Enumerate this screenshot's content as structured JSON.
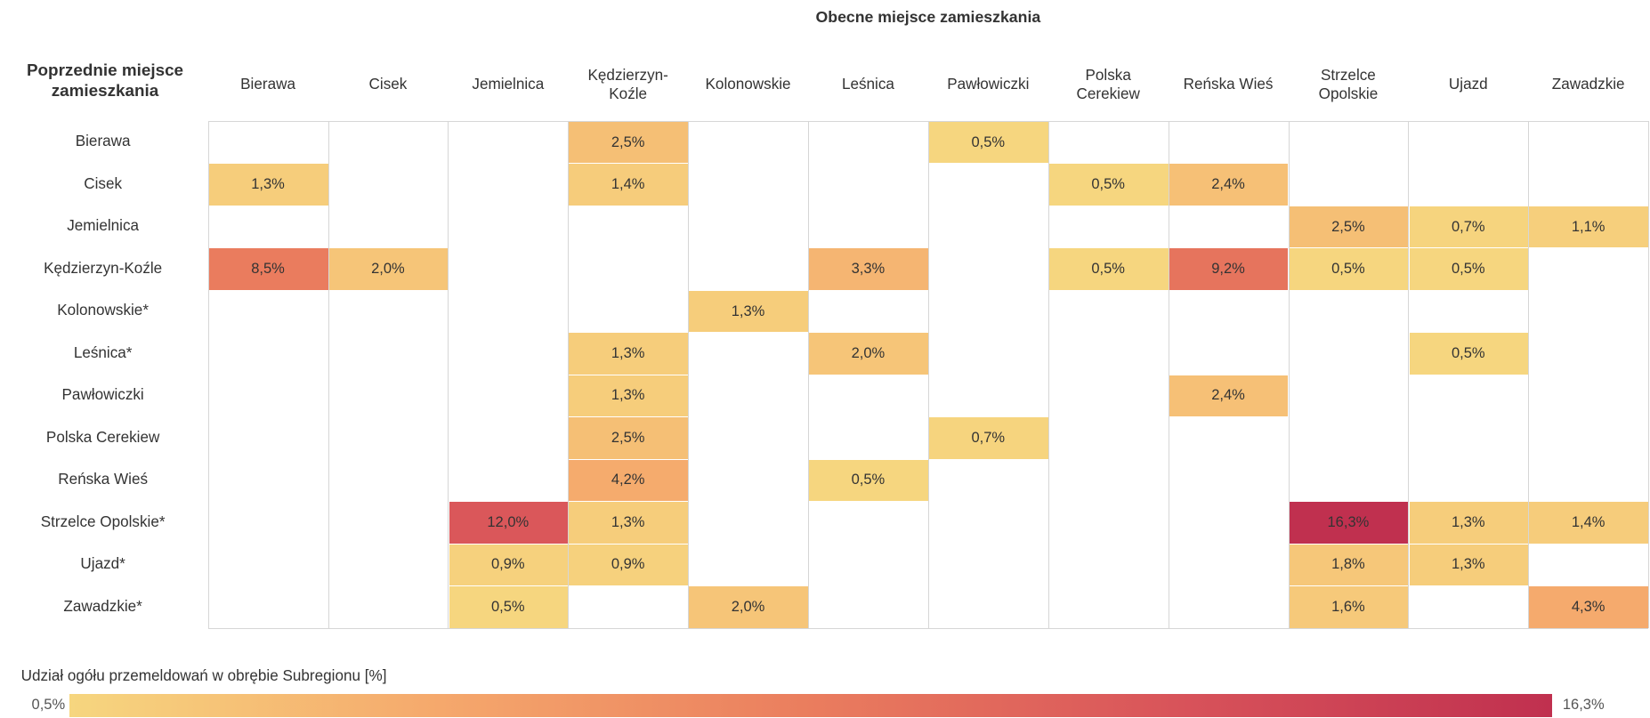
{
  "chart_data": {
    "type": "heatmap",
    "title": "Obecne miejsce zamieszkania",
    "row_axis_label": "Poprzednie miejsce\nzamieszkania",
    "columns": [
      "Bierawa",
      "Cisek",
      "Jemielnica",
      "Kędzierzyn-\nKoźle",
      "Kolonowskie",
      "Leśnica",
      "Pawłowiczki",
      "Polska\nCerekiew",
      "Reńska Wieś",
      "Strzelce\nOpolskie",
      "Ujazd",
      "Zawadzkie"
    ],
    "rows": [
      "Bierawa",
      "Cisek",
      "Jemielnica",
      "Kędzierzyn-Koźle",
      "Kolonowskie*",
      "Leśnica*",
      "Pawłowiczki",
      "Polska Cerekiew",
      "Reńska Wieś",
      "Strzelce Opolskie*",
      "Ujazd*",
      "Zawadzkie*"
    ],
    "values": [
      [
        null,
        null,
        null,
        2.5,
        null,
        null,
        0.5,
        null,
        null,
        null,
        null,
        null
      ],
      [
        1.3,
        null,
        null,
        1.4,
        null,
        null,
        null,
        0.5,
        2.4,
        null,
        null,
        null
      ],
      [
        null,
        null,
        null,
        null,
        null,
        null,
        null,
        null,
        null,
        2.5,
        0.7,
        1.1
      ],
      [
        8.5,
        2.0,
        null,
        null,
        null,
        3.3,
        null,
        0.5,
        9.2,
        0.5,
        0.5,
        null
      ],
      [
        null,
        null,
        null,
        null,
        1.3,
        null,
        null,
        null,
        null,
        null,
        null,
        null
      ],
      [
        null,
        null,
        null,
        1.3,
        null,
        2.0,
        null,
        null,
        null,
        null,
        0.5,
        null
      ],
      [
        null,
        null,
        null,
        1.3,
        null,
        null,
        null,
        null,
        2.4,
        null,
        null,
        null
      ],
      [
        null,
        null,
        null,
        2.5,
        null,
        null,
        0.7,
        null,
        null,
        null,
        null,
        null
      ],
      [
        null,
        null,
        null,
        4.2,
        null,
        0.5,
        null,
        null,
        null,
        null,
        null,
        null
      ],
      [
        null,
        null,
        12.0,
        1.3,
        null,
        null,
        null,
        null,
        null,
        16.3,
        1.3,
        1.4
      ],
      [
        null,
        null,
        0.9,
        0.9,
        null,
        null,
        null,
        null,
        null,
        1.8,
        1.3,
        null
      ],
      [
        null,
        null,
        0.5,
        null,
        2.0,
        null,
        null,
        null,
        null,
        1.6,
        null,
        4.3
      ]
    ],
    "value_labels": [
      [
        null,
        null,
        null,
        "2,5%",
        null,
        null,
        "0,5%",
        null,
        null,
        null,
        null,
        null
      ],
      [
        "1,3%",
        null,
        null,
        "1,4%",
        null,
        null,
        null,
        "0,5%",
        "2,4%",
        null,
        null,
        null
      ],
      [
        null,
        null,
        null,
        null,
        null,
        null,
        null,
        null,
        null,
        "2,5%",
        "0,7%",
        "1,1%"
      ],
      [
        "8,5%",
        "2,0%",
        null,
        null,
        null,
        "3,3%",
        null,
        "0,5%",
        "9,2%",
        "0,5%",
        "0,5%",
        null
      ],
      [
        null,
        null,
        null,
        null,
        "1,3%",
        null,
        null,
        null,
        null,
        null,
        null,
        null
      ],
      [
        null,
        null,
        null,
        "1,3%",
        null,
        "2,0%",
        null,
        null,
        null,
        null,
        "0,5%",
        null
      ],
      [
        null,
        null,
        null,
        "1,3%",
        null,
        null,
        null,
        null,
        "2,4%",
        null,
        null,
        null
      ],
      [
        null,
        null,
        null,
        "2,5%",
        null,
        null,
        "0,7%",
        null,
        null,
        null,
        null,
        null
      ],
      [
        null,
        null,
        null,
        "4,2%",
        null,
        "0,5%",
        null,
        null,
        null,
        null,
        null,
        null
      ],
      [
        null,
        null,
        "12,0%",
        "1,3%",
        null,
        null,
        null,
        null,
        null,
        "16,3%",
        "1,3%",
        "1,4%"
      ],
      [
        null,
        null,
        "0,9%",
        "0,9%",
        null,
        null,
        null,
        null,
        null,
        "1,8%",
        "1,3%",
        null
      ],
      [
        null,
        null,
        "0,5%",
        null,
        "2,0%",
        null,
        null,
        null,
        null,
        "1,6%",
        null,
        "4,3%"
      ]
    ],
    "colorbar_title": "Udział ogółu przemeldowań w obrębie Subregionu [%]",
    "clim": [
      0.5,
      16.3
    ],
    "cticks": [
      {
        "value": 0.5,
        "label": "0,5%"
      },
      {
        "value": 16.3,
        "label": "16,3%"
      }
    ],
    "colors": [
      "#f6d67f",
      "#f5a86c",
      "#ea7d5e",
      "#d8535a",
      "#c0304f"
    ]
  }
}
